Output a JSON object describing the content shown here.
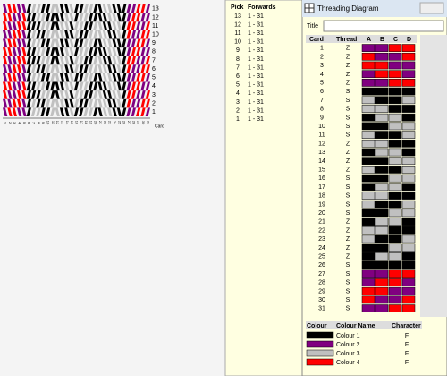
{
  "weave": {
    "axis_label": "Card"
  },
  "picks": {
    "headers": [
      "Pick",
      "Forwards"
    ],
    "rows": [
      [
        13,
        "1 - 31"
      ],
      [
        12,
        "1 - 31"
      ],
      [
        11,
        "1 - 31"
      ],
      [
        10,
        "1 - 31"
      ],
      [
        9,
        "1 - 31"
      ],
      [
        8,
        "1 - 31"
      ],
      [
        7,
        "1 - 31"
      ],
      [
        6,
        "1 - 31"
      ],
      [
        5,
        "1 - 31"
      ],
      [
        4,
        "1 - 31"
      ],
      [
        3,
        "1 - 31"
      ],
      [
        2,
        "1 - 31"
      ],
      [
        1,
        "1 - 31"
      ]
    ]
  },
  "window": {
    "title": "Threading Diagram",
    "title_label": "Title"
  },
  "threading": {
    "headers": [
      "Card",
      "Thread",
      "A",
      "B",
      "C",
      "D"
    ],
    "rows": [
      {
        "card": 1,
        "thread": "Z",
        "holes": [
          2,
          2,
          4,
          4
        ]
      },
      {
        "card": 2,
        "thread": "Z",
        "holes": [
          4,
          2,
          2,
          4
        ]
      },
      {
        "card": 3,
        "thread": "Z",
        "holes": [
          4,
          4,
          2,
          2
        ]
      },
      {
        "card": 4,
        "thread": "Z",
        "holes": [
          2,
          4,
          4,
          2
        ]
      },
      {
        "card": 5,
        "thread": "Z",
        "holes": [
          2,
          2,
          4,
          4
        ]
      },
      {
        "card": 6,
        "thread": "S",
        "holes": [
          1,
          1,
          1,
          1
        ]
      },
      {
        "card": 7,
        "thread": "S",
        "holes": [
          3,
          1,
          1,
          3
        ]
      },
      {
        "card": 8,
        "thread": "S",
        "holes": [
          3,
          3,
          1,
          1
        ]
      },
      {
        "card": 9,
        "thread": "S",
        "holes": [
          1,
          3,
          3,
          1
        ]
      },
      {
        "card": 10,
        "thread": "S",
        "holes": [
          1,
          1,
          3,
          3
        ]
      },
      {
        "card": 11,
        "thread": "S",
        "holes": [
          3,
          1,
          1,
          3
        ]
      },
      {
        "card": 12,
        "thread": "Z",
        "holes": [
          3,
          3,
          1,
          1
        ]
      },
      {
        "card": 13,
        "thread": "Z",
        "holes": [
          1,
          3,
          3,
          1
        ]
      },
      {
        "card": 14,
        "thread": "Z",
        "holes": [
          1,
          1,
          3,
          3
        ]
      },
      {
        "card": 15,
        "thread": "Z",
        "holes": [
          3,
          1,
          1,
          3
        ]
      },
      {
        "card": 16,
        "thread": "S",
        "holes": [
          1,
          1,
          3,
          3
        ]
      },
      {
        "card": 17,
        "thread": "S",
        "holes": [
          1,
          3,
          3,
          1
        ]
      },
      {
        "card": 18,
        "thread": "S",
        "holes": [
          3,
          3,
          1,
          1
        ]
      },
      {
        "card": 19,
        "thread": "S",
        "holes": [
          3,
          1,
          1,
          3
        ]
      },
      {
        "card": 20,
        "thread": "S",
        "holes": [
          1,
          1,
          3,
          3
        ]
      },
      {
        "card": 21,
        "thread": "Z",
        "holes": [
          1,
          3,
          3,
          1
        ]
      },
      {
        "card": 22,
        "thread": "Z",
        "holes": [
          3,
          3,
          1,
          1
        ]
      },
      {
        "card": 23,
        "thread": "Z",
        "holes": [
          3,
          1,
          1,
          3
        ]
      },
      {
        "card": 24,
        "thread": "Z",
        "holes": [
          1,
          1,
          3,
          3
        ]
      },
      {
        "card": 25,
        "thread": "Z",
        "holes": [
          1,
          3,
          3,
          1
        ]
      },
      {
        "card": 26,
        "thread": "S",
        "holes": [
          1,
          1,
          1,
          1
        ]
      },
      {
        "card": 27,
        "thread": "S",
        "holes": [
          2,
          2,
          4,
          4
        ]
      },
      {
        "card": 28,
        "thread": "S",
        "holes": [
          2,
          4,
          4,
          2
        ]
      },
      {
        "card": 29,
        "thread": "S",
        "holes": [
          4,
          4,
          2,
          2
        ]
      },
      {
        "card": 30,
        "thread": "S",
        "holes": [
          4,
          2,
          2,
          4
        ]
      },
      {
        "card": 31,
        "thread": "S",
        "holes": [
          2,
          2,
          4,
          4
        ]
      }
    ]
  },
  "colours": {
    "headers": [
      "Colour",
      "Colour Name",
      "Character"
    ],
    "rows": [
      {
        "color": "#000000",
        "name": "Colour 1",
        "char": "F"
      },
      {
        "color": "#800080",
        "name": "Colour 2",
        "char": "F"
      },
      {
        "color": "#c0c0c0",
        "name": "Colour 3",
        "char": "F"
      },
      {
        "color": "#ff0000",
        "name": "Colour 4",
        "char": "F"
      }
    ]
  }
}
